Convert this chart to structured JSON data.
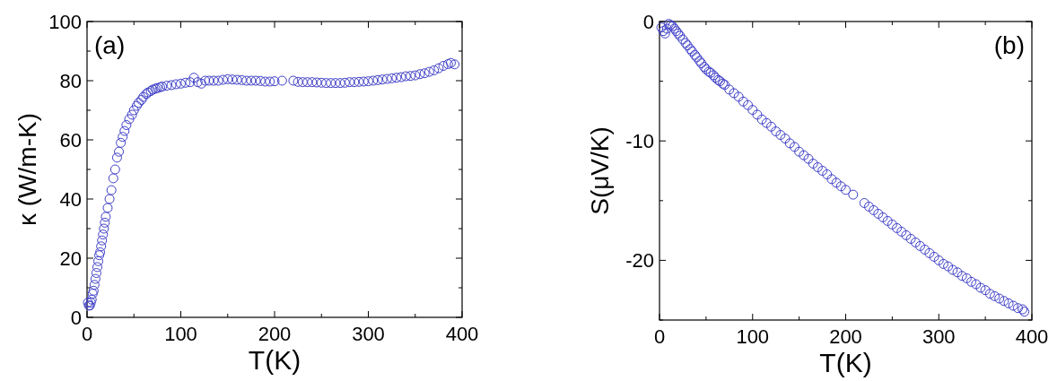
{
  "chart_data": [
    {
      "type": "scatter",
      "xlabel": "T(K)",
      "ylabel": "κ (W/m-K)",
      "annotations": [
        "(a)"
      ],
      "marker": "circle",
      "grid": false,
      "xlim": [
        0,
        400
      ],
      "xticks": [
        0,
        {
          "value": 50,
          "label": null
        },
        100,
        {
          "value": 150,
          "label": null
        },
        200,
        {
          "value": 250,
          "label": null
        },
        300,
        {
          "value": 350,
          "label": null
        },
        400
      ],
      "ylim": [
        0,
        100
      ],
      "yticks": [
        0,
        {
          "value": 10,
          "label": null
        },
        20,
        {
          "value": 30,
          "label": null
        },
        40,
        {
          "value": 50,
          "label": null
        },
        60,
        {
          "value": 70,
          "label": null
        },
        80,
        {
          "value": 90,
          "label": null
        },
        100
      ],
      "series": [
        {
          "color": "#3f3fc8",
          "x": [
            1,
            2,
            3,
            4,
            5,
            6,
            7,
            8,
            9,
            10,
            11,
            12,
            13,
            14,
            15,
            16,
            17,
            18,
            19,
            20,
            22,
            24,
            26,
            28,
            30,
            32,
            34,
            36,
            38,
            40,
            42,
            45,
            48,
            50,
            53,
            55,
            58,
            60,
            63,
            65,
            68,
            70,
            73,
            75,
            78,
            80,
            85,
            90,
            95,
            100,
            105,
            110,
            114,
            118,
            122,
            126,
            130,
            135,
            140,
            145,
            150,
            155,
            160,
            165,
            170,
            175,
            180,
            185,
            190,
            195,
            200,
            208,
            220,
            225,
            230,
            235,
            240,
            245,
            250,
            255,
            260,
            265,
            270,
            275,
            280,
            285,
            290,
            295,
            300,
            305,
            310,
            315,
            320,
            325,
            330,
            335,
            340,
            345,
            350,
            355,
            360,
            365,
            370,
            375,
            380,
            385,
            388,
            392
          ],
          "values": [
            5,
            4,
            4,
            5,
            6,
            8,
            9,
            11,
            13,
            15,
            17,
            19,
            21,
            22,
            24,
            26,
            28,
            30,
            32,
            34,
            37,
            40,
            43,
            47,
            50,
            54,
            56,
            59,
            61,
            63,
            65,
            67,
            68.5,
            70,
            71.5,
            72.5,
            73.5,
            74.5,
            75.5,
            76,
            76.5,
            77,
            77.3,
            77.5,
            77.8,
            78,
            78.3,
            78.5,
            78.8,
            79,
            79.3,
            79.5,
            81,
            79.5,
            79,
            80,
            80,
            80,
            80,
            80.3,
            80.5,
            80.4,
            80.3,
            80.2,
            80,
            80,
            80,
            79.9,
            79.7,
            79.7,
            79.8,
            80,
            80,
            79.6,
            79.5,
            79.5,
            79.5,
            79.4,
            79.3,
            79.2,
            79.2,
            79.2,
            79.2,
            79.3,
            79.5,
            79.5,
            79.6,
            79.7,
            79.8,
            80,
            80.2,
            80.4,
            80.6,
            80.8,
            81,
            81.2,
            81.5,
            81.6,
            81.8,
            82.2,
            82.5,
            83,
            83.5,
            84.2,
            85,
            85.6,
            86,
            85.5
          ]
        }
      ]
    },
    {
      "type": "scatter",
      "xlabel": "T(K)",
      "ylabel": "S(μV/K)",
      "annotations": [
        "(b)"
      ],
      "marker": "circle",
      "grid": false,
      "xlim": [
        0,
        400
      ],
      "xticks": [
        0,
        {
          "value": 50,
          "label": null
        },
        100,
        {
          "value": 150,
          "label": null
        },
        200,
        {
          "value": 250,
          "label": null
        },
        300,
        {
          "value": 350,
          "label": null
        },
        400
      ],
      "ylim": [
        -25,
        0
      ],
      "yticks": [
        {
          "value": -25,
          "label": null
        },
        -20,
        {
          "value": -15,
          "label": null
        },
        -10,
        {
          "value": -5,
          "label": null
        },
        0
      ],
      "series": [
        {
          "color": "#3f3fc8",
          "x": [
            2,
            4,
            6,
            8,
            10,
            12,
            14,
            16,
            18,
            20,
            22,
            25,
            28,
            30,
            33,
            35,
            38,
            40,
            43,
            45,
            48,
            50,
            53,
            55,
            58,
            60,
            63,
            65,
            68,
            70,
            75,
            80,
            85,
            90,
            95,
            100,
            105,
            110,
            115,
            120,
            125,
            130,
            135,
            140,
            145,
            150,
            155,
            160,
            165,
            170,
            175,
            180,
            185,
            190,
            195,
            200,
            208,
            220,
            225,
            230,
            235,
            240,
            245,
            250,
            255,
            260,
            265,
            270,
            275,
            280,
            285,
            290,
            295,
            300,
            305,
            310,
            315,
            320,
            325,
            330,
            335,
            340,
            345,
            350,
            355,
            360,
            365,
            370,
            375,
            380,
            385,
            390,
            392
          ],
          "values": [
            -0.5,
            -0.8,
            -1,
            -0.6,
            -0.2,
            -0.3,
            -0.4,
            -0.6,
            -0.8,
            -1,
            -1.2,
            -1.5,
            -1.8,
            -2,
            -2.3,
            -2.5,
            -2.8,
            -3,
            -3.3,
            -3.5,
            -3.8,
            -4,
            -4.2,
            -4.3,
            -4.5,
            -4.7,
            -4.9,
            -5,
            -5.2,
            -5.3,
            -5.7,
            -6,
            -6.3,
            -6.7,
            -7,
            -7.4,
            -7.8,
            -8.2,
            -8.5,
            -8.8,
            -9.2,
            -9.5,
            -9.8,
            -10.2,
            -10.5,
            -10.9,
            -11.2,
            -11.5,
            -11.9,
            -12.2,
            -12.5,
            -12.8,
            -13.2,
            -13.5,
            -13.8,
            -14.1,
            -14.5,
            -15.2,
            -15.5,
            -15.8,
            -16.1,
            -16.4,
            -16.7,
            -17,
            -17.3,
            -17.6,
            -17.9,
            -18.2,
            -18.5,
            -18.8,
            -19.1,
            -19.4,
            -19.7,
            -20,
            -20.3,
            -20.5,
            -20.8,
            -21,
            -21.3,
            -21.5,
            -21.8,
            -22,
            -22.3,
            -22.5,
            -22.8,
            -23,
            -23.2,
            -23.4,
            -23.6,
            -23.8,
            -24,
            -24.1,
            -24.3
          ]
        }
      ]
    }
  ]
}
